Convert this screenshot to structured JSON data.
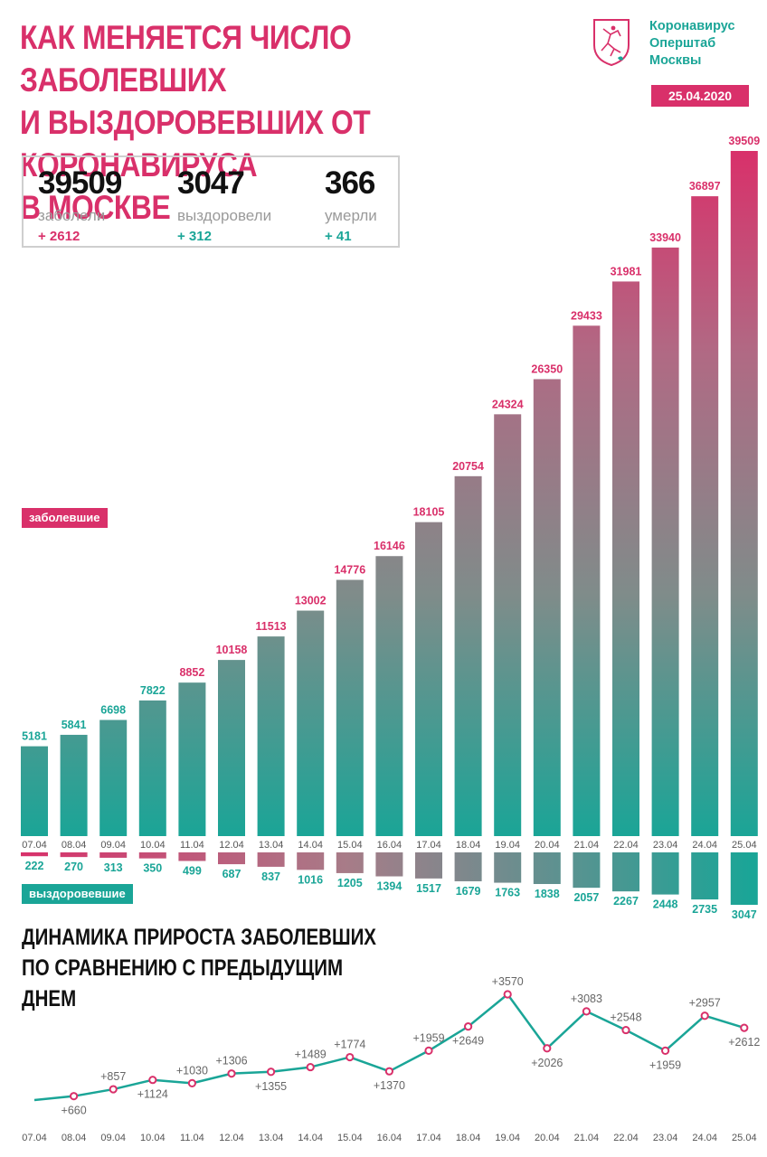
{
  "header": {
    "title_lines": [
      "КАК МЕНЯЕТСЯ ЧИСЛО ЗАБОЛЕВШИХ",
      "И ВЫЗДОРОВЕВШИХ ОТ КОРОНАВИРУСА",
      "В МОСКВЕ"
    ],
    "org_lines": [
      "Коронавирус",
      "Оперштаб",
      "Москвы"
    ],
    "date": "25.04.2020"
  },
  "colors": {
    "accent_pink": "#d9306a",
    "accent_teal": "#1aa597"
  },
  "summary": [
    {
      "value": "39509",
      "label": "заболели",
      "delta": "+ 2612",
      "delta_color": "pink"
    },
    {
      "value": "3047",
      "label": "выздоровели",
      "delta": "+ 312",
      "delta_color": "teal"
    },
    {
      "value": "366",
      "label": "умерли",
      "delta": "+ 41",
      "delta_color": "teal"
    }
  ],
  "legend": {
    "sick": "заболевшие",
    "recovered": "выздоровевшие"
  },
  "section2_title_lines": [
    "ДИНАМИКА ПРИРОСТА ЗАБОЛЕВШИХ",
    "ПО СРАВНЕНИЮ С ПРЕДЫДУЩИМ ДНЕМ"
  ],
  "chart_data": [
    {
      "type": "bar",
      "title": "",
      "categories": [
        "07.04",
        "08.04",
        "09.04",
        "10.04",
        "11.04",
        "12.04",
        "13.04",
        "14.04",
        "15.04",
        "16.04",
        "17.04",
        "18.04",
        "19.04",
        "20.04",
        "21.04",
        "22.04",
        "23.04",
        "24.04",
        "25.04"
      ],
      "series": [
        {
          "name": "заболевшие",
          "values": [
            5181,
            5841,
            6698,
            7822,
            8852,
            10158,
            11513,
            13002,
            14776,
            16146,
            18105,
            20754,
            24324,
            26350,
            29433,
            31981,
            33940,
            36897,
            39509
          ]
        },
        {
          "name": "выздоровевшие",
          "values": [
            222,
            270,
            313,
            350,
            499,
            687,
            837,
            1016,
            1205,
            1394,
            1517,
            1679,
            1763,
            1838,
            2057,
            2267,
            2448,
            2735,
            3047
          ]
        }
      ]
    },
    {
      "type": "line",
      "title": "ДИНАМИКА ПРИРОСТА ЗАБОЛЕВШИХ ПО СРАВНЕНИЮ С ПРЕДЫДУЩИМ ДНЕМ",
      "categories": [
        "07.04",
        "08.04",
        "09.04",
        "10.04",
        "11.04",
        "12.04",
        "13.04",
        "14.04",
        "15.04",
        "16.04",
        "17.04",
        "18.04",
        "19.04",
        "20.04",
        "21.04",
        "22.04",
        "23.04",
        "24.04",
        "25.04"
      ],
      "values": [
        null,
        660,
        857,
        1124,
        1030,
        1306,
        1355,
        1489,
        1774,
        1370,
        1959,
        2649,
        3570,
        2026,
        3083,
        2548,
        1959,
        2957,
        2612
      ],
      "labels": [
        "",
        "+660",
        "+857",
        "+1124",
        "+1030",
        "+1306",
        "+1355",
        "+1489",
        "+1774",
        "+1370",
        "+1959",
        "+2649",
        "+3570",
        "+2026",
        "+3083",
        "+2548",
        "+1959",
        "+2957",
        "+2612"
      ]
    }
  ]
}
